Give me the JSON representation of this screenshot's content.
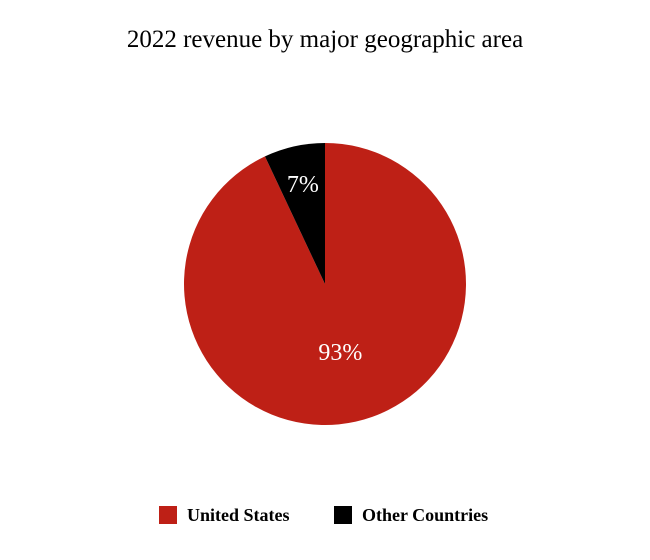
{
  "chart_data": {
    "type": "pie",
    "title": "2022 revenue by major geographic area",
    "slices": [
      {
        "name": "United States",
        "value": 93,
        "label": "93%",
        "color": "#be2016"
      },
      {
        "name": "Other Countries",
        "value": 7,
        "label": "7%",
        "color": "#000000"
      }
    ],
    "start_angle": "top (12 o'clock)",
    "direction": "clockwise",
    "legend_position": "bottom"
  }
}
